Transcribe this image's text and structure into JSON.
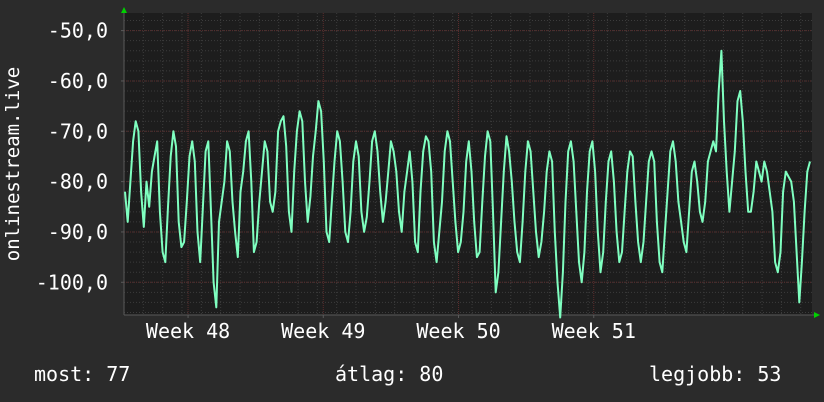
{
  "colors": {
    "background": "#2b2b2b",
    "plot_background": "#1d1d1d",
    "line": "#7fffc0",
    "grid_minor": "#3c3c3c",
    "grid_major": "#5a2c2c",
    "axis": "#5a5a5a",
    "arrow": "#00d000",
    "text": "#ffffff"
  },
  "chart_data": {
    "type": "line",
    "ylabel": "onlinestream.live",
    "ylim": [
      -106.5,
      -46.5
    ],
    "yticks": [
      -50,
      -60,
      -70,
      -80,
      -90,
      -100
    ],
    "ytick_labels": [
      "-50,0",
      "-60,0",
      "-70,0",
      "-80,0",
      "-90,0",
      "-100,0"
    ],
    "xlim": [
      0,
      290
    ],
    "xticks": [
      {
        "label": "Week 48",
        "x": 27
      },
      {
        "label": "Week 49",
        "x": 84
      },
      {
        "label": "Week 50",
        "x": 141
      },
      {
        "label": "Week 51",
        "x": 198
      }
    ],
    "grid": true,
    "series": [
      {
        "values": [
          -82,
          -88,
          -80,
          -72,
          -68,
          -70,
          -82,
          -89,
          -80,
          -85,
          -78,
          -75,
          -72,
          -86,
          -94,
          -96,
          -85,
          -75,
          -70,
          -73,
          -88,
          -93,
          -92,
          -84,
          -75,
          -72,
          -76,
          -90,
          -96,
          -85,
          -74,
          -72,
          -86,
          -100,
          -105,
          -88,
          -84,
          -80,
          -72,
          -74,
          -84,
          -90,
          -95,
          -82,
          -78,
          -72,
          -70,
          -80,
          -94,
          -92,
          -84,
          -78,
          -72,
          -74,
          -84,
          -86,
          -82,
          -70,
          -68,
          -67,
          -73,
          -86,
          -90,
          -78,
          -70,
          -66,
          -68,
          -80,
          -88,
          -83,
          -75,
          -70,
          -64,
          -66,
          -76,
          -90,
          -92,
          -84,
          -76,
          -70,
          -72,
          -80,
          -90,
          -92,
          -86,
          -76,
          -72,
          -75,
          -86,
          -90,
          -87,
          -80,
          -72,
          -70,
          -74,
          -82,
          -88,
          -84,
          -78,
          -72,
          -74,
          -78,
          -86,
          -90,
          -82,
          -78,
          -74,
          -80,
          -92,
          -94,
          -82,
          -74,
          -71,
          -72,
          -78,
          -92,
          -96,
          -90,
          -84,
          -74,
          -70,
          -72,
          -80,
          -88,
          -94,
          -92,
          -86,
          -76,
          -72,
          -78,
          -88,
          -95,
          -94,
          -84,
          -75,
          -70,
          -72,
          -86,
          -102,
          -98,
          -88,
          -78,
          -71,
          -74,
          -80,
          -88,
          -94,
          -96,
          -88,
          -78,
          -72,
          -74,
          -82,
          -90,
          -95,
          -92,
          -86,
          -78,
          -74,
          -76,
          -90,
          -100,
          -107,
          -98,
          -84,
          -74,
          -72,
          -76,
          -86,
          -96,
          -100,
          -94,
          -82,
          -74,
          -72,
          -78,
          -90,
          -98,
          -94,
          -84,
          -76,
          -74,
          -80,
          -90,
          -96,
          -94,
          -86,
          -78,
          -74,
          -75,
          -84,
          -92,
          -96,
          -92,
          -84,
          -76,
          -74,
          -76,
          -88,
          -96,
          -98,
          -90,
          -82,
          -74,
          -72,
          -76,
          -84,
          -88,
          -92,
          -94,
          -86,
          -78,
          -76,
          -80,
          -86,
          -88,
          -84,
          -76,
          -74,
          -72,
          -74,
          -62,
          -54,
          -68,
          -78,
          -86,
          -80,
          -74,
          -64,
          -62,
          -68,
          -78,
          -86,
          -86,
          -82,
          -76,
          -78,
          -80,
          -76,
          -78,
          -82,
          -86,
          -96,
          -98,
          -94,
          -82,
          -78,
          -79,
          -80,
          -84,
          -94,
          -104,
          -96,
          -86,
          -78,
          -76
        ]
      }
    ]
  },
  "stats": {
    "current_label": "most:",
    "current_value": "77",
    "average_label": "átlag:",
    "average_value": "80",
    "best_label": "legjobb:",
    "best_value": "53"
  }
}
